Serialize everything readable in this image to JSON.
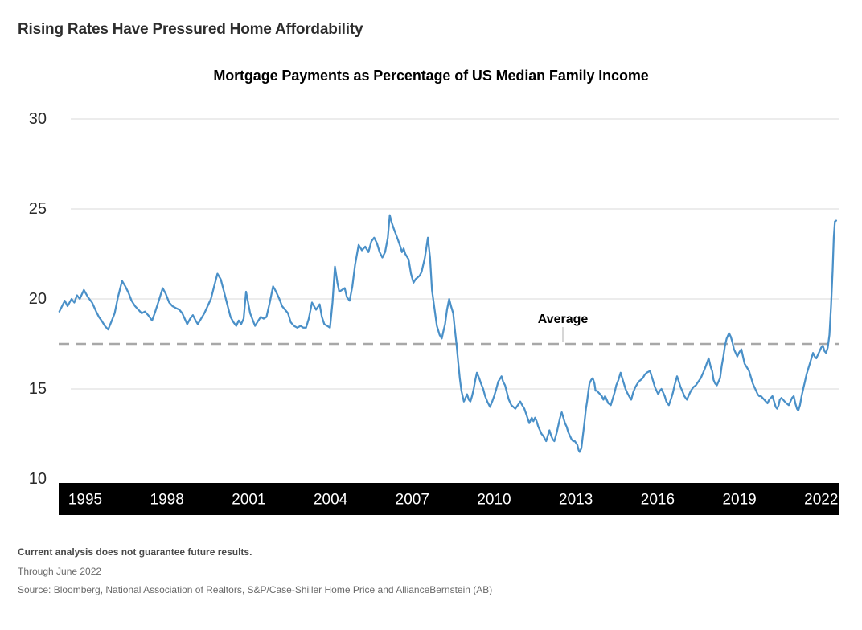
{
  "header": {
    "title": "Rising Rates Have Pressured Home Affordability"
  },
  "footnotes": {
    "disclaimer": "Current analysis does not guarantee future results.",
    "as_of": "Through June 2022",
    "source": "Source: Bloomberg, National Association of Realtors, S&P/Case-Shiller Home Price and AllianceBernstein (AB)"
  },
  "chart_data": {
    "type": "line",
    "title": "Mortgage Payments as Percentage of US Median Family Income",
    "x_axis": {
      "ticks": [
        1995,
        1998,
        2001,
        2004,
        2007,
        2010,
        2013,
        2016,
        2019,
        2022
      ],
      "range": [
        1994,
        2022.6
      ],
      "style": "black-band"
    },
    "y_axis": {
      "ticks": [
        30,
        25,
        20,
        15,
        10
      ],
      "range": [
        10,
        31
      ],
      "grid": true
    },
    "average_line": {
      "label": "Average",
      "value": 17.5,
      "style": "dashed"
    },
    "legend": "none",
    "colors": {
      "line": "#4a90c8",
      "average": "#a8a8a8",
      "average_callout": "#c9c9c9",
      "gridline": "#d8d8d8",
      "axis_band": "#000000",
      "x_tick_text": "#ffffff",
      "y_tick_text": "#2a2a2a"
    },
    "points": [
      [
        1994.05,
        19.3
      ],
      [
        1994.15,
        19.6
      ],
      [
        1994.25,
        19.9
      ],
      [
        1994.35,
        19.6
      ],
      [
        1994.5,
        20.0
      ],
      [
        1994.6,
        19.8
      ],
      [
        1994.7,
        20.2
      ],
      [
        1994.8,
        20.0
      ],
      [
        1994.95,
        20.5
      ],
      [
        1995.1,
        20.1
      ],
      [
        1995.25,
        19.8
      ],
      [
        1995.4,
        19.3
      ],
      [
        1995.5,
        19.0
      ],
      [
        1995.6,
        18.8
      ],
      [
        1995.72,
        18.5
      ],
      [
        1995.84,
        18.3
      ],
      [
        1995.95,
        18.7
      ],
      [
        1996.08,
        19.2
      ],
      [
        1996.2,
        20.1
      ],
      [
        1996.35,
        21.0
      ],
      [
        1996.47,
        20.7
      ],
      [
        1996.6,
        20.3
      ],
      [
        1996.7,
        19.9
      ],
      [
        1996.83,
        19.6
      ],
      [
        1996.95,
        19.4
      ],
      [
        1997.07,
        19.2
      ],
      [
        1997.19,
        19.3
      ],
      [
        1997.31,
        19.1
      ],
      [
        1997.45,
        18.8
      ],
      [
        1997.55,
        19.2
      ],
      [
        1997.7,
        19.9
      ],
      [
        1997.84,
        20.6
      ],
      [
        1997.95,
        20.3
      ],
      [
        1998.08,
        19.8
      ],
      [
        1998.2,
        19.6
      ],
      [
        1998.32,
        19.5
      ],
      [
        1998.45,
        19.4
      ],
      [
        1998.56,
        19.2
      ],
      [
        1998.65,
        18.9
      ],
      [
        1998.74,
        18.6
      ],
      [
        1998.85,
        18.9
      ],
      [
        1998.95,
        19.1
      ],
      [
        1999.05,
        18.8
      ],
      [
        1999.13,
        18.6
      ],
      [
        1999.25,
        18.9
      ],
      [
        1999.37,
        19.2
      ],
      [
        1999.49,
        19.6
      ],
      [
        1999.61,
        20.0
      ],
      [
        1999.73,
        20.7
      ],
      [
        1999.85,
        21.4
      ],
      [
        1999.97,
        21.1
      ],
      [
        2000.09,
        20.4
      ],
      [
        2000.21,
        19.7
      ],
      [
        2000.33,
        19.0
      ],
      [
        2000.44,
        18.7
      ],
      [
        2000.54,
        18.5
      ],
      [
        2000.63,
        18.8
      ],
      [
        2000.72,
        18.6
      ],
      [
        2000.81,
        18.9
      ],
      [
        2000.9,
        20.4
      ],
      [
        2001.05,
        19.2
      ],
      [
        2001.23,
        18.5
      ],
      [
        2001.35,
        18.8
      ],
      [
        2001.44,
        19.0
      ],
      [
        2001.55,
        18.9
      ],
      [
        2001.65,
        19.0
      ],
      [
        2001.77,
        19.8
      ],
      [
        2001.89,
        20.7
      ],
      [
        2002.0,
        20.4
      ],
      [
        2002.12,
        20.0
      ],
      [
        2002.22,
        19.6
      ],
      [
        2002.33,
        19.4
      ],
      [
        2002.44,
        19.2
      ],
      [
        2002.54,
        18.7
      ],
      [
        2002.66,
        18.5
      ],
      [
        2002.78,
        18.4
      ],
      [
        2002.9,
        18.5
      ],
      [
        2003.0,
        18.4
      ],
      [
        2003.1,
        18.4
      ],
      [
        2003.2,
        18.9
      ],
      [
        2003.32,
        19.8
      ],
      [
        2003.47,
        19.4
      ],
      [
        2003.6,
        19.7
      ],
      [
        2003.68,
        19.0
      ],
      [
        2003.77,
        18.6
      ],
      [
        2003.88,
        18.5
      ],
      [
        2003.98,
        18.4
      ],
      [
        2004.07,
        19.8
      ],
      [
        2004.16,
        21.8
      ],
      [
        2004.25,
        20.9
      ],
      [
        2004.32,
        20.4
      ],
      [
        2004.42,
        20.5
      ],
      [
        2004.52,
        20.6
      ],
      [
        2004.6,
        20.1
      ],
      [
        2004.7,
        19.9
      ],
      [
        2004.8,
        20.7
      ],
      [
        2004.9,
        21.9
      ],
      [
        2005.03,
        23.0
      ],
      [
        2005.15,
        22.7
      ],
      [
        2005.27,
        22.9
      ],
      [
        2005.39,
        22.6
      ],
      [
        2005.5,
        23.2
      ],
      [
        2005.6,
        23.4
      ],
      [
        2005.7,
        23.1
      ],
      [
        2005.8,
        22.6
      ],
      [
        2005.9,
        22.3
      ],
      [
        2006.0,
        22.6
      ],
      [
        2006.1,
        23.4
      ],
      [
        2006.17,
        24.65
      ],
      [
        2006.25,
        24.2
      ],
      [
        2006.32,
        23.9
      ],
      [
        2006.47,
        23.3
      ],
      [
        2006.56,
        22.9
      ],
      [
        2006.62,
        22.6
      ],
      [
        2006.68,
        22.8
      ],
      [
        2006.74,
        22.5
      ],
      [
        2006.86,
        22.2
      ],
      [
        2006.95,
        21.4
      ],
      [
        2007.04,
        20.9
      ],
      [
        2007.12,
        21.1
      ],
      [
        2007.2,
        21.2
      ],
      [
        2007.27,
        21.3
      ],
      [
        2007.34,
        21.5
      ],
      [
        2007.46,
        22.3
      ],
      [
        2007.57,
        23.4
      ],
      [
        2007.65,
        22.3
      ],
      [
        2007.72,
        20.5
      ],
      [
        2007.8,
        19.6
      ],
      [
        2007.9,
        18.5
      ],
      [
        2008.0,
        18.0
      ],
      [
        2008.08,
        17.8
      ],
      [
        2008.14,
        18.2
      ],
      [
        2008.2,
        18.6
      ],
      [
        2008.27,
        19.4
      ],
      [
        2008.35,
        20.0
      ],
      [
        2008.42,
        19.6
      ],
      [
        2008.5,
        19.2
      ],
      [
        2008.56,
        18.3
      ],
      [
        2008.62,
        17.5
      ],
      [
        2008.68,
        16.5
      ],
      [
        2008.74,
        15.6
      ],
      [
        2008.8,
        14.9
      ],
      [
        2008.89,
        14.3
      ],
      [
        2008.95,
        14.5
      ],
      [
        2009.01,
        14.7
      ],
      [
        2009.07,
        14.4
      ],
      [
        2009.13,
        14.3
      ],
      [
        2009.19,
        14.6
      ],
      [
        2009.25,
        15.0
      ],
      [
        2009.31,
        15.5
      ],
      [
        2009.37,
        15.9
      ],
      [
        2009.45,
        15.6
      ],
      [
        2009.52,
        15.3
      ],
      [
        2009.6,
        15.0
      ],
      [
        2009.67,
        14.6
      ],
      [
        2009.75,
        14.3
      ],
      [
        2009.85,
        14.0
      ],
      [
        2009.93,
        14.3
      ],
      [
        2010.0,
        14.6
      ],
      [
        2010.08,
        15.0
      ],
      [
        2010.15,
        15.4
      ],
      [
        2010.27,
        15.7
      ],
      [
        2010.33,
        15.4
      ],
      [
        2010.4,
        15.2
      ],
      [
        2010.47,
        14.8
      ],
      [
        2010.54,
        14.4
      ],
      [
        2010.63,
        14.1
      ],
      [
        2010.78,
        13.9
      ],
      [
        2010.87,
        14.1
      ],
      [
        2010.96,
        14.3
      ],
      [
        2011.03,
        14.1
      ],
      [
        2011.11,
        13.9
      ],
      [
        2011.2,
        13.5
      ],
      [
        2011.29,
        13.1
      ],
      [
        2011.38,
        13.4
      ],
      [
        2011.44,
        13.2
      ],
      [
        2011.5,
        13.4
      ],
      [
        2011.56,
        13.2
      ],
      [
        2011.62,
        12.9
      ],
      [
        2011.68,
        12.7
      ],
      [
        2011.74,
        12.5
      ],
      [
        2011.8,
        12.4
      ],
      [
        2011.91,
        12.1
      ],
      [
        2011.97,
        12.4
      ],
      [
        2012.03,
        12.7
      ],
      [
        2012.09,
        12.4
      ],
      [
        2012.15,
        12.2
      ],
      [
        2012.21,
        12.1
      ],
      [
        2012.3,
        12.6
      ],
      [
        2012.36,
        13.0
      ],
      [
        2012.42,
        13.4
      ],
      [
        2012.48,
        13.7
      ],
      [
        2012.54,
        13.4
      ],
      [
        2012.6,
        13.1
      ],
      [
        2012.66,
        12.9
      ],
      [
        2012.72,
        12.6
      ],
      [
        2012.78,
        12.4
      ],
      [
        2012.84,
        12.2
      ],
      [
        2012.9,
        12.1
      ],
      [
        2012.96,
        12.1
      ],
      [
        2013.05,
        11.9
      ],
      [
        2013.1,
        11.6
      ],
      [
        2013.14,
        11.5
      ],
      [
        2013.2,
        11.7
      ],
      [
        2013.24,
        12.2
      ],
      [
        2013.28,
        12.7
      ],
      [
        2013.32,
        13.2
      ],
      [
        2013.37,
        13.9
      ],
      [
        2013.41,
        14.3
      ],
      [
        2013.46,
        14.9
      ],
      [
        2013.5,
        15.3
      ],
      [
        2013.56,
        15.5
      ],
      [
        2013.62,
        15.6
      ],
      [
        2013.68,
        15.3
      ],
      [
        2013.72,
        14.9
      ],
      [
        2013.77,
        14.9
      ],
      [
        2013.83,
        14.8
      ],
      [
        2013.89,
        14.7
      ],
      [
        2013.95,
        14.6
      ],
      [
        2014.01,
        14.4
      ],
      [
        2014.07,
        14.6
      ],
      [
        2014.13,
        14.4
      ],
      [
        2014.19,
        14.2
      ],
      [
        2014.28,
        14.1
      ],
      [
        2014.36,
        14.5
      ],
      [
        2014.42,
        14.8
      ],
      [
        2014.48,
        15.2
      ],
      [
        2014.56,
        15.5
      ],
      [
        2014.64,
        15.9
      ],
      [
        2014.7,
        15.6
      ],
      [
        2014.76,
        15.3
      ],
      [
        2014.82,
        15.0
      ],
      [
        2014.88,
        14.8
      ],
      [
        2014.95,
        14.6
      ],
      [
        2015.03,
        14.4
      ],
      [
        2015.1,
        14.8
      ],
      [
        2015.18,
        15.1
      ],
      [
        2015.3,
        15.4
      ],
      [
        2015.38,
        15.5
      ],
      [
        2015.45,
        15.6
      ],
      [
        2015.53,
        15.8
      ],
      [
        2015.6,
        15.9
      ],
      [
        2015.72,
        16.0
      ],
      [
        2015.78,
        15.7
      ],
      [
        2015.84,
        15.4
      ],
      [
        2015.9,
        15.1
      ],
      [
        2015.96,
        14.9
      ],
      [
        2016.02,
        14.7
      ],
      [
        2016.08,
        14.9
      ],
      [
        2016.14,
        15.0
      ],
      [
        2016.2,
        14.8
      ],
      [
        2016.26,
        14.6
      ],
      [
        2016.32,
        14.3
      ],
      [
        2016.41,
        14.1
      ],
      [
        2016.5,
        14.5
      ],
      [
        2016.56,
        14.8
      ],
      [
        2016.62,
        15.2
      ],
      [
        2016.71,
        15.7
      ],
      [
        2016.78,
        15.4
      ],
      [
        2016.84,
        15.1
      ],
      [
        2016.9,
        14.9
      ],
      [
        2016.98,
        14.6
      ],
      [
        2017.07,
        14.4
      ],
      [
        2017.16,
        14.7
      ],
      [
        2017.22,
        14.9
      ],
      [
        2017.31,
        15.1
      ],
      [
        2017.4,
        15.2
      ],
      [
        2017.49,
        15.4
      ],
      [
        2017.58,
        15.6
      ],
      [
        2017.67,
        15.9
      ],
      [
        2017.75,
        16.2
      ],
      [
        2017.87,
        16.7
      ],
      [
        2017.95,
        16.2
      ],
      [
        2018.0,
        16.0
      ],
      [
        2018.05,
        15.5
      ],
      [
        2018.11,
        15.3
      ],
      [
        2018.17,
        15.2
      ],
      [
        2018.23,
        15.4
      ],
      [
        2018.29,
        15.6
      ],
      [
        2018.35,
        16.3
      ],
      [
        2018.41,
        16.8
      ],
      [
        2018.47,
        17.4
      ],
      [
        2018.53,
        17.8
      ],
      [
        2018.62,
        18.1
      ],
      [
        2018.68,
        17.9
      ],
      [
        2018.74,
        17.6
      ],
      [
        2018.8,
        17.2
      ],
      [
        2018.86,
        17.0
      ],
      [
        2018.92,
        16.8
      ],
      [
        2018.98,
        17.0
      ],
      [
        2019.07,
        17.2
      ],
      [
        2019.13,
        16.8
      ],
      [
        2019.19,
        16.4
      ],
      [
        2019.27,
        16.2
      ],
      [
        2019.35,
        16.0
      ],
      [
        2019.43,
        15.6
      ],
      [
        2019.49,
        15.3
      ],
      [
        2019.55,
        15.1
      ],
      [
        2019.61,
        14.9
      ],
      [
        2019.67,
        14.7
      ],
      [
        2019.73,
        14.6
      ],
      [
        2019.79,
        14.6
      ],
      [
        2019.85,
        14.5
      ],
      [
        2019.91,
        14.4
      ],
      [
        2019.97,
        14.3
      ],
      [
        2020.03,
        14.2
      ],
      [
        2020.09,
        14.4
      ],
      [
        2020.15,
        14.5
      ],
      [
        2020.21,
        14.6
      ],
      [
        2020.27,
        14.3
      ],
      [
        2020.33,
        14.0
      ],
      [
        2020.38,
        13.9
      ],
      [
        2020.44,
        14.1
      ],
      [
        2020.48,
        14.4
      ],
      [
        2020.54,
        14.5
      ],
      [
        2020.6,
        14.4
      ],
      [
        2020.66,
        14.3
      ],
      [
        2020.72,
        14.2
      ],
      [
        2020.81,
        14.1
      ],
      [
        2020.87,
        14.3
      ],
      [
        2020.93,
        14.5
      ],
      [
        2020.99,
        14.6
      ],
      [
        2021.05,
        14.2
      ],
      [
        2021.11,
        13.9
      ],
      [
        2021.16,
        13.8
      ],
      [
        2021.22,
        14.1
      ],
      [
        2021.28,
        14.6
      ],
      [
        2021.34,
        15.0
      ],
      [
        2021.4,
        15.4
      ],
      [
        2021.46,
        15.8
      ],
      [
        2021.52,
        16.1
      ],
      [
        2021.58,
        16.4
      ],
      [
        2021.64,
        16.7
      ],
      [
        2021.7,
        17.0
      ],
      [
        2021.76,
        16.8
      ],
      [
        2021.82,
        16.7
      ],
      [
        2021.88,
        16.9
      ],
      [
        2021.94,
        17.1
      ],
      [
        2022.0,
        17.3
      ],
      [
        2022.06,
        17.4
      ],
      [
        2022.12,
        17.1
      ],
      [
        2022.18,
        17.0
      ],
      [
        2022.24,
        17.3
      ],
      [
        2022.3,
        18.0
      ],
      [
        2022.36,
        19.6
      ],
      [
        2022.42,
        21.6
      ],
      [
        2022.46,
        23.4
      ],
      [
        2022.5,
        24.3
      ],
      [
        2022.55,
        24.35
      ]
    ]
  }
}
